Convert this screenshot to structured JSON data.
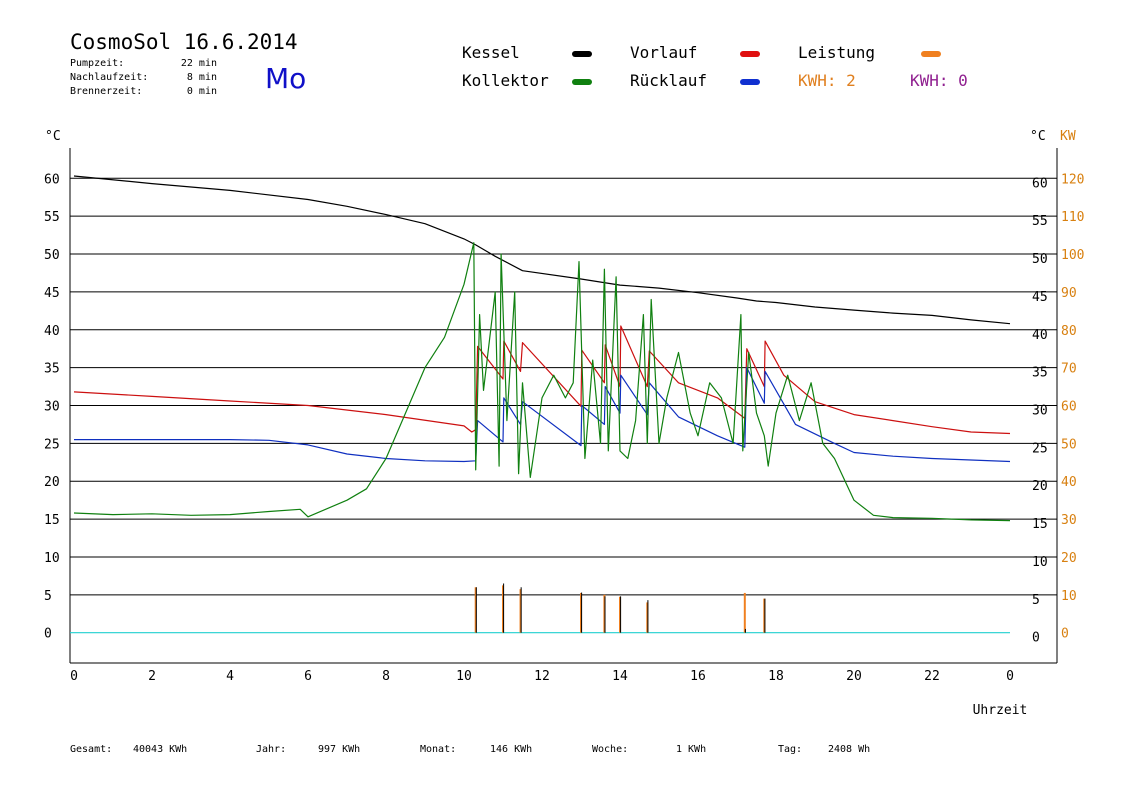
{
  "header": {
    "title": "CosmoSol 16.6.2014",
    "day": "Mo",
    "info": [
      {
        "label": "Pumpzeit:",
        "value": "22 min"
      },
      {
        "label": "Nachlaufzeit:",
        "value": "8 min"
      },
      {
        "label": "Brennerzeit:",
        "value": "0 min"
      }
    ]
  },
  "legend": {
    "kessel": {
      "label": "Kessel",
      "color": "#000000"
    },
    "vorlauf": {
      "label": "Vorlauf",
      "color": "#e01010"
    },
    "leistung": {
      "label": "Leistung",
      "color": "#f08020"
    },
    "kollektor": {
      "label": "Kollektor",
      "color": "#108010"
    },
    "ruecklauf": {
      "label": "Rücklauf",
      "color": "#1030d0"
    },
    "kwh1": {
      "label": "KWH: 2",
      "color": "#e08020"
    },
    "kwh2": {
      "label": "KWH: 0",
      "color": "#902090"
    }
  },
  "footer": {
    "gesamt": {
      "label": "Gesamt:",
      "value": "40043 KWh"
    },
    "jahr": {
      "label": "Jahr:",
      "value": "997 KWh"
    },
    "monat": {
      "label": "Monat:",
      "value": "146 KWh"
    },
    "woche": {
      "label": "Woche:",
      "value": "1 KWh"
    },
    "tag": {
      "label": "Tag:",
      "value": "2408 Wh"
    }
  },
  "chart_data": {
    "type": "line",
    "xlabel": "Uhrzeit",
    "ylabel_left": "°C",
    "ylabel_right": "°C",
    "ylabel_kw": "KW",
    "xlim": [
      0,
      24
    ],
    "ylim": [
      -4,
      64
    ],
    "x_ticks": [
      "0",
      "2",
      "4",
      "6",
      "8",
      "10",
      "12",
      "14",
      "16",
      "18",
      "20",
      "22",
      "0"
    ],
    "y_ticks": [
      0,
      5,
      10,
      15,
      20,
      25,
      30,
      35,
      40,
      45,
      50,
      55,
      60
    ],
    "kw_ticks": [
      0,
      10,
      20,
      30,
      40,
      50,
      60,
      70,
      80,
      90,
      100,
      110,
      120
    ],
    "grid": "horizontal",
    "series": [
      {
        "name": "Kessel",
        "color": "#000000",
        "x": [
          0,
          2,
          4,
          6,
          7,
          8,
          9,
          10,
          10.3,
          10.8,
          11.5,
          13,
          14,
          15,
          16,
          17,
          17.5,
          18,
          19,
          20,
          21,
          22,
          23,
          24
        ],
        "y": [
          60.3,
          59.3,
          58.4,
          57.2,
          56.3,
          55.2,
          54,
          52,
          51.2,
          49.7,
          47.8,
          46.7,
          45.9,
          45.5,
          44.9,
          44.2,
          43.8,
          43.6,
          43,
          42.6,
          42.2,
          41.9,
          41.3,
          40.8
        ]
      },
      {
        "name": "Vorlauf",
        "color": "#cc1010",
        "x": [
          0,
          2,
          4,
          6,
          8,
          10,
          10.2,
          10.3,
          10.35,
          11,
          11.02,
          11.45,
          11.5,
          13,
          13.02,
          13.6,
          13.62,
          14,
          14.02,
          14.7,
          14.75,
          15.5,
          16.5,
          17.2,
          17.25,
          17.7,
          17.72,
          18.2,
          19,
          20,
          21,
          22,
          23,
          24
        ],
        "y": [
          31.8,
          31.2,
          30.6,
          30,
          28.8,
          27.3,
          26.5,
          26.8,
          37.8,
          33.5,
          38.5,
          34.5,
          38.3,
          29.9,
          37.3,
          33,
          38,
          32.5,
          40.5,
          32.5,
          37.2,
          33,
          31,
          28.3,
          37.5,
          32.5,
          38.5,
          34,
          30.5,
          28.8,
          28,
          27.2,
          26.5,
          26.3
        ]
      },
      {
        "name": "Rücklauf",
        "color": "#1030c0",
        "x": [
          0,
          2,
          4,
          5,
          6,
          7,
          8,
          9,
          10,
          10.3,
          10.35,
          11,
          11.02,
          11.45,
          11.5,
          13,
          13.02,
          13.6,
          13.62,
          14,
          14.02,
          14.7,
          14.75,
          15.5,
          16.5,
          17.2,
          17.25,
          17.7,
          17.72,
          18.5,
          19.5,
          20,
          21,
          22,
          23,
          24
        ],
        "y": [
          25.5,
          25.5,
          25.5,
          25.4,
          24.8,
          23.6,
          23,
          22.7,
          22.6,
          22.7,
          28,
          25.2,
          31,
          27.5,
          30.5,
          24.7,
          30,
          27.5,
          32.5,
          29,
          34,
          28.8,
          33,
          28.5,
          26,
          24.5,
          35,
          30.3,
          34.5,
          27.5,
          25,
          23.8,
          23.3,
          23,
          22.8,
          22.6
        ]
      },
      {
        "name": "Kollektor",
        "color": "#108010",
        "x": [
          0,
          1,
          2,
          3,
          4,
          5,
          5.8,
          6,
          7,
          7.5,
          8,
          8.5,
          9,
          9.5,
          10,
          10.25,
          10.3,
          10.4,
          10.5,
          10.8,
          10.9,
          10.95,
          11.1,
          11.3,
          11.4,
          11.5,
          11.7,
          12,
          12.3,
          12.6,
          12.8,
          12.95,
          13.1,
          13.3,
          13.5,
          13.6,
          13.7,
          13.9,
          14,
          14.2,
          14.4,
          14.6,
          14.7,
          14.8,
          15,
          15.2,
          15.5,
          15.8,
          16,
          16.3,
          16.6,
          16.9,
          17.1,
          17.15,
          17.3,
          17.5,
          17.7,
          17.8,
          18,
          18.3,
          18.6,
          18.9,
          19.2,
          19.5,
          20,
          20.5,
          21,
          22,
          23,
          24
        ],
        "y": [
          15.8,
          15.6,
          15.7,
          15.5,
          15.6,
          16,
          16.3,
          15.3,
          17.5,
          19,
          23,
          29,
          35,
          39,
          46,
          51.5,
          21.5,
          42,
          32,
          45,
          22,
          50,
          28,
          45,
          21,
          33,
          20.5,
          31,
          34,
          31,
          33,
          49,
          23,
          36,
          25,
          48,
          24,
          47,
          24,
          23,
          28,
          42,
          25,
          44,
          25,
          31,
          37,
          29,
          26,
          33,
          31,
          25,
          42,
          24,
          37,
          29,
          26,
          22,
          29,
          34,
          28,
          33,
          25,
          23,
          17.5,
          15.5,
          15.2,
          15.1,
          14.9,
          14.8
        ]
      }
    ],
    "power": {
      "name": "Leistung",
      "color": "#f08020",
      "unit": "KW",
      "x": [
        10.3,
        11,
        11.45,
        13,
        13.6,
        14,
        14.7,
        17.2,
        17.7
      ],
      "y": [
        12,
        12.5,
        11.5,
        10.5,
        10,
        9.5,
        8,
        10.5,
        9
      ],
      "black_y": [
        6,
        6.5,
        6,
        5.3,
        4.8,
        4.8,
        4.3,
        0.5,
        4.5
      ]
    },
    "baseline": {
      "color": "#20d0d0",
      "y": 0
    }
  }
}
